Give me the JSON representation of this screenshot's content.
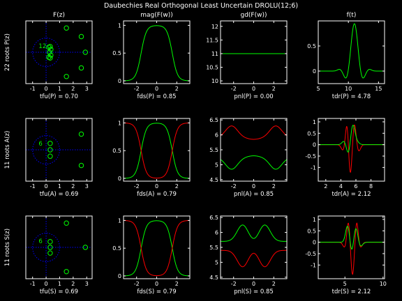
{
  "figure": {
    "title": "Daubechies Real Orthogonal Least Uncertain DROLU(12;6)"
  },
  "colors": {
    "axes": "#ffffff",
    "green": "#00ff00",
    "red": "#ff0000",
    "blue": "#0000ff"
  },
  "chart_data": [
    {
      "id": "p11",
      "type": "scatter",
      "kind": "zplane",
      "title": "F(z)",
      "ylabel": "22 roots P(z)",
      "xlabel": "tfu(P) = 0.70",
      "xlim": [
        -1.5,
        3.4
      ],
      "ylim": [
        -2.2,
        2.2
      ],
      "xticks": [
        -1,
        0,
        1,
        2,
        3
      ],
      "yticks": [],
      "roots": [
        [
          1.5,
          1.7
        ],
        [
          1.5,
          -1.7
        ],
        [
          2.6,
          1.1
        ],
        [
          2.6,
          -1.1
        ],
        [
          2.9,
          0
        ],
        [
          0.2,
          0.35
        ],
        [
          0.2,
          -0.35
        ],
        [
          0.35,
          0.2
        ],
        [
          0.35,
          -0.2
        ],
        [
          0.3,
          0.4
        ],
        [
          0.3,
          -0.4
        ],
        [
          0.25,
          0
        ]
      ],
      "multiplicity": {
        "label": "12",
        "x": -0.55,
        "y": 0.3
      }
    },
    {
      "id": "p12",
      "type": "line",
      "kind": "mag",
      "title": "mag(F(w))",
      "xlabel": "fds(P) = 0.85",
      "xlim": [
        -3.3,
        3.3
      ],
      "ylim": [
        -0.05,
        1.08
      ],
      "xticks": [
        -2,
        0,
        2
      ],
      "yticks": [
        0,
        0.5,
        1
      ],
      "series": [
        {
          "color": "green",
          "fn": "magP"
        }
      ]
    },
    {
      "id": "p13",
      "type": "line",
      "kind": "gd",
      "title": "gd(F(w))",
      "xlabel": "pnl(P) = 0.00",
      "xlim": [
        -3.3,
        3.3
      ],
      "ylim": [
        9.9,
        12.2
      ],
      "xticks": [
        -2,
        0,
        2
      ],
      "yticks": [
        10,
        10.5,
        11,
        11.5,
        12
      ],
      "series": [
        {
          "color": "green",
          "fn": "gdP"
        }
      ]
    },
    {
      "id": "p14",
      "type": "line",
      "kind": "time",
      "title": "f(t)",
      "xlabel": "tdr(P) = 4.78",
      "xlim": [
        5,
        16
      ],
      "ylim": [
        -0.25,
        1.0
      ],
      "xticks": [
        5,
        10,
        15
      ],
      "yticks": [
        0,
        0.5
      ],
      "series": [
        {
          "color": "green",
          "fn": "fP"
        }
      ]
    },
    {
      "id": "p21",
      "type": "scatter",
      "kind": "zplane",
      "ylabel": "11 roots A(z)",
      "xlabel": "tfu(A) = 0.69",
      "xlim": [
        -1.5,
        3.4
      ],
      "ylim": [
        -2.2,
        2.2
      ],
      "xticks": [
        -1,
        0,
        1,
        2,
        3
      ],
      "yticks": [],
      "roots": [
        [
          2.6,
          1.1
        ],
        [
          2.6,
          -1.1
        ],
        [
          0.3,
          0.45
        ],
        [
          0.3,
          -0.45
        ],
        [
          0.3,
          0
        ]
      ],
      "multiplicity": {
        "label": "6",
        "x": -0.55,
        "y": 0.3
      }
    },
    {
      "id": "p22",
      "type": "line",
      "kind": "mag",
      "xlabel": "fds(A) = 0.79",
      "xlim": [
        -3.3,
        3.3
      ],
      "ylim": [
        -0.05,
        1.08
      ],
      "xticks": [
        -2,
        0,
        2
      ],
      "yticks": [
        0,
        0.5,
        1
      ],
      "series": [
        {
          "color": "green",
          "fn": "magP"
        },
        {
          "color": "red",
          "fn": "magQ"
        }
      ]
    },
    {
      "id": "p23",
      "type": "line",
      "kind": "gd",
      "xlabel": "pnl(A) = 0.85",
      "xlim": [
        -3.3,
        3.3
      ],
      "ylim": [
        4.45,
        6.55
      ],
      "xticks": [
        -2,
        0,
        2
      ],
      "yticks": [
        4.5,
        5,
        5.5,
        6,
        6.5
      ],
      "series": [
        {
          "color": "red",
          "fn": "gdAr"
        },
        {
          "color": "green",
          "fn": "gdAg"
        }
      ]
    },
    {
      "id": "p24",
      "type": "line",
      "kind": "time",
      "xlabel": "tdr(A) = 2.12",
      "xlim": [
        1,
        9.8
      ],
      "ylim": [
        -1.6,
        1.15
      ],
      "xticks": [
        2,
        4,
        6,
        8
      ],
      "yticks": [
        -1,
        -0.5,
        0,
        0.5,
        1
      ],
      "series": [
        {
          "color": "red",
          "fn": "wAr"
        },
        {
          "color": "green",
          "fn": "wAg"
        }
      ]
    },
    {
      "id": "p31",
      "type": "scatter",
      "kind": "zplane",
      "ylabel": "11 roots S(z)",
      "xlabel": "tfu(S) = 0.69",
      "xlim": [
        -1.5,
        3.4
      ],
      "ylim": [
        -2.2,
        2.2
      ],
      "xticks": [
        -1,
        0,
        1,
        2,
        3
      ],
      "yticks": [],
      "roots": [
        [
          1.5,
          1.7
        ],
        [
          1.5,
          -1.7
        ],
        [
          2.9,
          0
        ],
        [
          0.3,
          0.4
        ],
        [
          0.3,
          -0.4
        ],
        [
          0.3,
          0
        ]
      ],
      "multiplicity": {
        "label": "6",
        "x": -0.55,
        "y": 0.3
      }
    },
    {
      "id": "p32",
      "type": "line",
      "kind": "mag",
      "xlabel": "fds(S) = 0.79",
      "xlim": [
        -3.3,
        3.3
      ],
      "ylim": [
        -0.05,
        1.08
      ],
      "xticks": [
        -2,
        0,
        2
      ],
      "yticks": [
        0,
        0.5,
        1
      ],
      "series": [
        {
          "color": "green",
          "fn": "magP"
        },
        {
          "color": "red",
          "fn": "magQ"
        }
      ]
    },
    {
      "id": "p33",
      "type": "line",
      "kind": "gd",
      "xlabel": "pnl(S) = 0.85",
      "xlim": [
        -3.3,
        3.3
      ],
      "ylim": [
        4.45,
        6.55
      ],
      "xticks": [
        -2,
        0,
        2
      ],
      "yticks": [
        4.5,
        5,
        5.5,
        6,
        6.5
      ],
      "series": [
        {
          "color": "green",
          "fn": "gdSg"
        },
        {
          "color": "red",
          "fn": "gdSr"
        }
      ]
    },
    {
      "id": "p34",
      "type": "line",
      "kind": "time",
      "xlabel": "tdr(S) = 2.12",
      "xlim": [
        1.5,
        10.2
      ],
      "ylim": [
        -1.6,
        1.15
      ],
      "xticks": [
        5,
        10
      ],
      "yticks": [
        -1,
        -0.5,
        0,
        0.5,
        1
      ],
      "series": [
        {
          "color": "red",
          "fn": "wSr"
        },
        {
          "color": "green",
          "fn": "wSg"
        }
      ]
    }
  ]
}
